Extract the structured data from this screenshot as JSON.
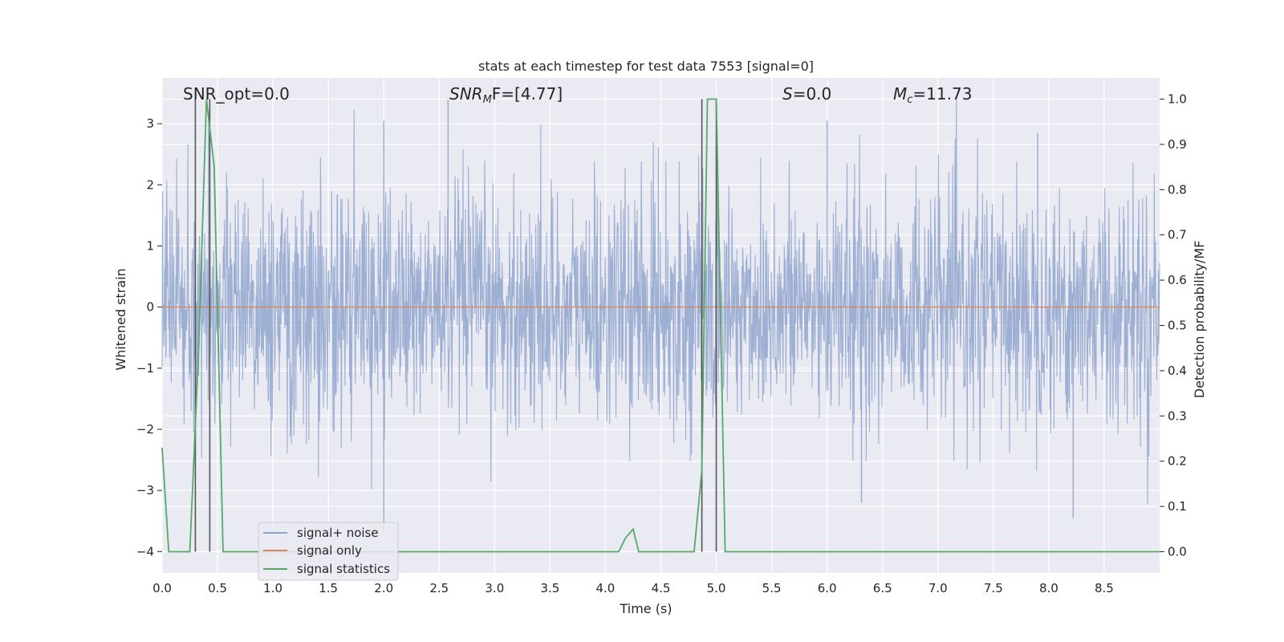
{
  "chart_data": {
    "type": "line",
    "title": "stats at each timestep for test data 7553 [signal=0]",
    "xlabel": "Time (s)",
    "ylabel_left": "Whitened strain",
    "ylabel_right": "Detection probability/MF",
    "xlim": [
      0,
      9.0
    ],
    "ylim_left": [
      -4.35,
      3.75
    ],
    "ylim_right": [
      -0.047,
      1.047
    ],
    "xticks": [
      "0.0",
      "0.5",
      "1.0",
      "1.5",
      "2.0",
      "2.5",
      "3.0",
      "3.5",
      "4.0",
      "4.5",
      "5.0",
      "5.5",
      "6.0",
      "6.5",
      "7.0",
      "7.5",
      "8.0",
      "8.5"
    ],
    "yticks_left": [
      "−4",
      "−3",
      "−2",
      "−1",
      "0",
      "1",
      "2",
      "3"
    ],
    "yticks_right": [
      "0.0",
      "0.1",
      "0.2",
      "0.3",
      "0.4",
      "0.5",
      "0.6",
      "0.7",
      "0.8",
      "0.9",
      "1.0"
    ],
    "grid": true,
    "legend_position": "lower-left",
    "annotations": {
      "snr_opt": "SNR_opt=0.0",
      "snr_mf_prefix": "SNR",
      "snr_mf_sub": "M",
      "snr_mf_suffix": "F=[4.77]",
      "s_prefix": "S",
      "s_suffix": "=0.0",
      "mc_prefix": "M",
      "mc_sub": "c",
      "mc_suffix": "=11.73"
    },
    "series": [
      {
        "name": "signal+ noise",
        "color": "#8fa4cc",
        "noise_envelope": {
          "typical_abs": 1.2,
          "max": 3.45,
          "min": -3.7
        },
        "notable_peaks": [
          [
            0.42,
            3.2
          ],
          [
            2.0,
            3.05
          ],
          [
            2.58,
            3.4
          ],
          [
            6.0,
            3.05
          ],
          [
            7.9,
            2.85
          ],
          [
            2.0,
            -3.7
          ],
          [
            6.31,
            -3.2
          ],
          [
            8.22,
            -3.45
          ]
        ]
      },
      {
        "name": "signal only",
        "color": "#dd8452",
        "x": [
          0,
          9.0
        ],
        "y": [
          0,
          0
        ]
      },
      {
        "name": "signal statistics",
        "color": "#55a868",
        "axis": "right",
        "x": [
          0.0,
          0.06,
          0.1,
          0.25,
          0.33,
          0.4,
          0.47,
          0.55,
          0.56,
          4.0,
          4.12,
          4.18,
          4.25,
          4.3,
          4.8,
          4.87,
          4.92,
          5.0,
          5.08,
          5.14,
          6.0,
          6.5,
          9.0
        ],
        "y": [
          0.23,
          0.0,
          0.0,
          0.0,
          0.45,
          1.0,
          0.85,
          0.0,
          0.0,
          0.0,
          0.0,
          0.03,
          0.05,
          0.0,
          0.0,
          0.18,
          1.0,
          1.0,
          0.0,
          0.0,
          0.0,
          0.0,
          0.0
        ]
      }
    ],
    "vertical_markers": {
      "color": "#555555",
      "x": [
        0.3,
        0.43,
        4.87,
        5.0
      ],
      "y_top": 1.0,
      "y_bottom": 0.0
    }
  }
}
